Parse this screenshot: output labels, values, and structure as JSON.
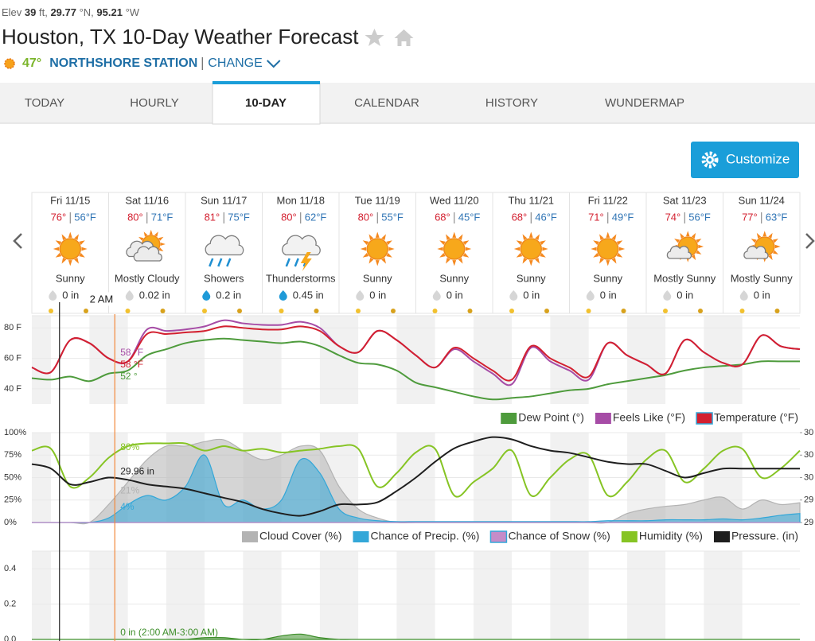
{
  "header": {
    "elevation_parts": [
      "Elev ",
      "39",
      " ft, ",
      "29.77",
      " °N, ",
      "95.21",
      " °W"
    ],
    "title": "Houston, TX 10-Day Weather Forecast",
    "current_temp": "47°",
    "station": "NORTHSHORE STATION",
    "change": "CHANGE"
  },
  "tabs": {
    "items": [
      "TODAY",
      "HOURLY",
      "10-DAY",
      "CALENDAR",
      "HISTORY",
      "WUNDERMAP"
    ],
    "active": 2
  },
  "customize_button": "Customize",
  "days": [
    {
      "date": "Fri 11/15",
      "high": "76°",
      "low": "56°F",
      "condition": "Sunny",
      "precip": "0 in"
    },
    {
      "date": "Sat 11/16",
      "high": "80°",
      "low": "71°F",
      "condition": "Mostly Cloudy",
      "precip": "0.02 in"
    },
    {
      "date": "Sun 11/17",
      "high": "81°",
      "low": "75°F",
      "condition": "Showers",
      "precip": "0.2 in"
    },
    {
      "date": "Mon 11/18",
      "high": "80°",
      "low": "62°F",
      "condition": "Thunderstorms",
      "precip": "0.45 in"
    },
    {
      "date": "Tue 11/19",
      "high": "80°",
      "low": "55°F",
      "condition": "Sunny",
      "precip": "0 in"
    },
    {
      "date": "Wed 11/20",
      "high": "68°",
      "low": "45°F",
      "condition": "Sunny",
      "precip": "0 in"
    },
    {
      "date": "Thu 11/21",
      "high": "68°",
      "low": "46°F",
      "condition": "Sunny",
      "precip": "0 in"
    },
    {
      "date": "Fri 11/22",
      "high": "71°",
      "low": "49°F",
      "condition": "Sunny",
      "precip": "0 in"
    },
    {
      "date": "Sat 11/23",
      "high": "74°",
      "low": "56°F",
      "condition": "Mostly Sunny",
      "precip": "0 in"
    },
    {
      "date": "Sun 11/24",
      "high": "77°",
      "low": "63°F",
      "condition": "Mostly Sunny",
      "precip": "0 in"
    }
  ],
  "timeline": {
    "xlim": [
      0,
      10
    ],
    "x": [
      0,
      0.25,
      0.5,
      0.75,
      1,
      1.25,
      1.5,
      1.75,
      2,
      2.25,
      2.5,
      2.75,
      3,
      3.25,
      3.5,
      3.75,
      4,
      4.25,
      4.5,
      4.75,
      5,
      5.25,
      5.5,
      5.75,
      6,
      6.25,
      6.5,
      6.75,
      7,
      7.25,
      7.5,
      7.75,
      8,
      8.25,
      8.5,
      8.75,
      9,
      9.25,
      9.5,
      9.75,
      10
    ],
    "now": 0.36,
    "cursor": 1.08,
    "cursor_label": "2 AM"
  },
  "charts": [
    {
      "type": "line",
      "ylim": [
        30,
        88
      ],
      "yticks": [
        {
          "value": 80,
          "label": "80 F"
        },
        {
          "value": 60,
          "label": "60 F"
        },
        {
          "value": 40,
          "label": "40 F"
        }
      ],
      "series": [
        {
          "name": "Dew Point (°)",
          "color": "#4e9b3c",
          "cursor_label": "52 °",
          "values": [
            47,
            46,
            48,
            45,
            50,
            52,
            62,
            66,
            70,
            72,
            73,
            72,
            71,
            70,
            71,
            68,
            62,
            57,
            56,
            52,
            44,
            41,
            38,
            35,
            33,
            34,
            35,
            37,
            39,
            40,
            43,
            45,
            47,
            49,
            52,
            54,
            55,
            56,
            58,
            58,
            58
          ]
        },
        {
          "name": "Feels Like (°F)",
          "color": "#a64ca6",
          "cursor_label": "58 °F",
          "values": [
            54,
            51,
            72,
            70,
            60,
            58,
            79,
            78,
            79,
            81,
            85,
            83,
            82,
            82,
            84,
            80,
            68,
            64,
            78,
            72,
            62,
            54,
            66,
            58,
            50,
            43,
            67,
            58,
            52,
            46,
            70,
            62,
            56,
            50,
            72,
            64,
            57,
            56,
            75,
            68,
            66
          ]
        },
        {
          "name": "Temperature (°F)",
          "color": "#d32030",
          "cursor_label": "58 °F",
          "values": [
            54,
            51,
            72,
            70,
            60,
            58,
            76,
            76,
            77,
            78,
            81,
            80,
            79,
            79,
            81,
            78,
            68,
            64,
            78,
            72,
            62,
            54,
            67,
            60,
            52,
            46,
            68,
            60,
            54,
            48,
            70,
            62,
            56,
            50,
            72,
            64,
            57,
            56,
            75,
            68,
            66
          ]
        }
      ]
    },
    {
      "type": "line",
      "ylim": [
        0,
        100
      ],
      "yticks": [
        {
          "value": 100,
          "label": "100%"
        },
        {
          "value": 75,
          "label": "75%"
        },
        {
          "value": 50,
          "label": "50%"
        },
        {
          "value": 25,
          "label": "25%"
        },
        {
          "value": 0,
          "label": "0%"
        }
      ],
      "y2lim": [
        29.8,
        30.2
      ],
      "y2ticks": [
        {
          "value": 30.2,
          "label": "30"
        },
        {
          "value": 30.1,
          "label": "30"
        },
        {
          "value": 30.0,
          "label": "30"
        },
        {
          "value": 29.9,
          "label": "29"
        },
        {
          "value": 29.8,
          "label": "29"
        }
      ],
      "series": [
        {
          "name": "Cloud Cover (%)",
          "color": "#b3b3b3",
          "type": "area",
          "cursor_label": "21%",
          "values": [
            0,
            0,
            0,
            0,
            20,
            45,
            70,
            85,
            85,
            90,
            92,
            80,
            70,
            75,
            85,
            80,
            40,
            15,
            5,
            0,
            0,
            0,
            0,
            0,
            0,
            0,
            0,
            0,
            0,
            0,
            0,
            10,
            15,
            18,
            20,
            25,
            28,
            15,
            25,
            20,
            22
          ]
        },
        {
          "name": "Chance of Precip. (%)",
          "color": "#33a7d8",
          "type": "area",
          "cursor_label": "4%",
          "values": [
            0,
            0,
            0,
            0,
            5,
            20,
            30,
            25,
            40,
            75,
            20,
            25,
            15,
            25,
            70,
            55,
            15,
            5,
            2,
            1,
            1,
            1,
            1,
            1,
            1,
            1,
            1,
            1,
            1,
            1,
            2,
            2,
            2,
            3,
            3,
            3,
            4,
            3,
            5,
            8,
            10
          ]
        },
        {
          "name": "Chance of Snow (%)",
          "color": "#c58cc8",
          "type": "area",
          "values": [
            0,
            0,
            0,
            0,
            0,
            0,
            0,
            0,
            0,
            0,
            0,
            0,
            0,
            0,
            0,
            0,
            0,
            0,
            0,
            0,
            0,
            0,
            0,
            0,
            0,
            0,
            0,
            0,
            0,
            0,
            0,
            0,
            0,
            0,
            0,
            0,
            0,
            0,
            0,
            0,
            0
          ]
        },
        {
          "name": "Humidity (%)",
          "color": "#86c424",
          "cursor_label": "80%",
          "values": [
            80,
            82,
            40,
            50,
            72,
            85,
            88,
            88,
            88,
            80,
            85,
            80,
            82,
            78,
            80,
            82,
            85,
            82,
            40,
            55,
            78,
            82,
            30,
            45,
            60,
            80,
            30,
            50,
            70,
            75,
            30,
            45,
            70,
            80,
            45,
            60,
            80,
            82,
            50,
            60,
            80
          ]
        },
        {
          "name": "Pressure. (in)",
          "color": "#1e1e1e",
          "axis": "y2",
          "cursor_label": "29.96 in",
          "values": [
            30.06,
            30.04,
            29.97,
            29.98,
            30.0,
            29.99,
            29.97,
            29.96,
            29.95,
            29.93,
            29.91,
            29.89,
            29.86,
            29.84,
            29.83,
            29.85,
            29.88,
            29.88,
            29.89,
            29.94,
            30.0,
            30.07,
            30.13,
            30.16,
            30.18,
            30.17,
            30.14,
            30.12,
            30.11,
            30.09,
            30.07,
            30.06,
            30.06,
            30.03,
            30.0,
            30.02,
            30.04,
            30.04,
            30.04,
            30.04,
            30.04
          ]
        }
      ]
    },
    {
      "type": "line",
      "ylim": [
        0,
        0.5
      ],
      "yticks": [
        0.4,
        0.2,
        {
          "value": 0,
          "label": "0.0"
        }
      ],
      "series": [
        {
          "color": "#3f8f2c",
          "type": "area",
          "cursor_label": "0 in (2:00 AM-3:00 AM)",
          "values": [
            0,
            0,
            0,
            0,
            0,
            0,
            0,
            0,
            0,
            0.01,
            0.01,
            0,
            0,
            0.02,
            0.03,
            0.01,
            0,
            0,
            0,
            0,
            0,
            0,
            0,
            0,
            0,
            0,
            0,
            0,
            0,
            0,
            0,
            0,
            0,
            0,
            0,
            0,
            0,
            0,
            0,
            0,
            0
          ]
        }
      ]
    }
  ]
}
